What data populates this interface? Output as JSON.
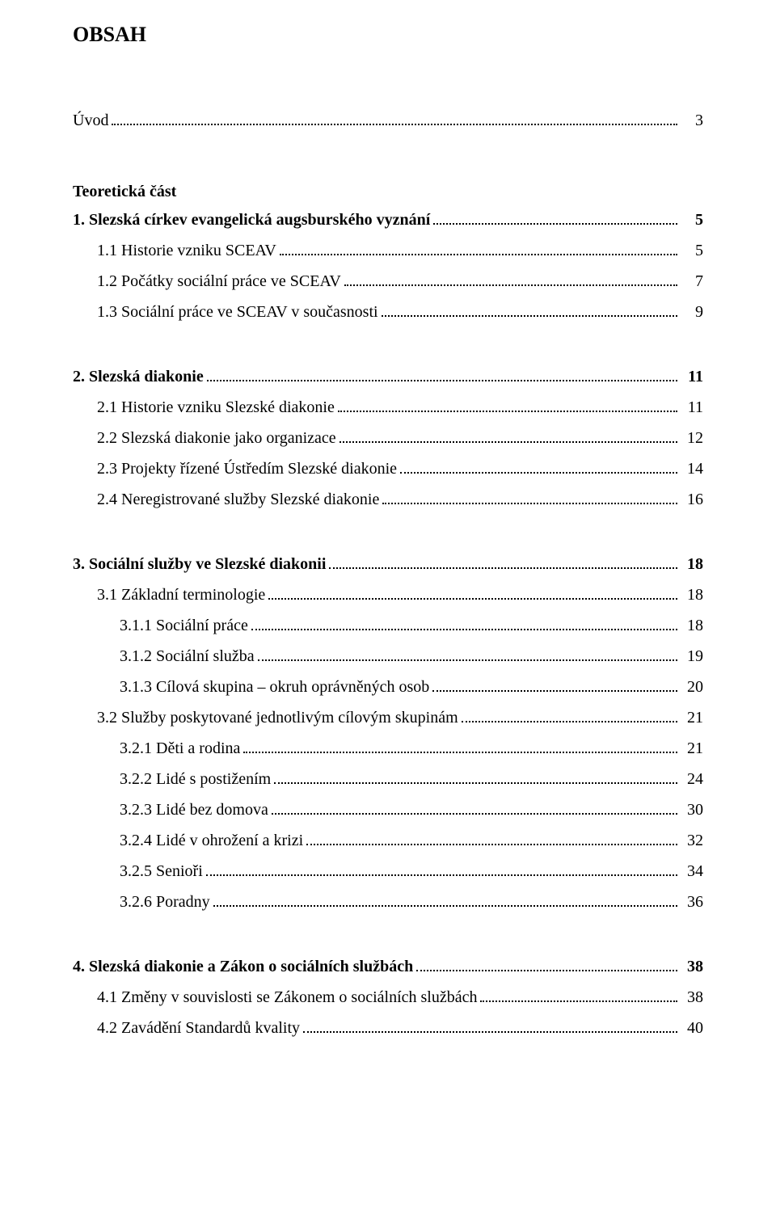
{
  "title": "OBSAH",
  "entries": [
    {
      "label": "Úvod",
      "page": "3",
      "bold": false,
      "indent": "indent-0"
    },
    {
      "gap": "section-gap-big"
    },
    {
      "heading": "Teoretická část"
    },
    {
      "label": "1.    Slezská církev evangelická augsburského vyznání",
      "page": "5",
      "bold": true,
      "indent": "indent-num"
    },
    {
      "label": "1.1 Historie vzniku SCEAV",
      "page": "5",
      "bold": false,
      "indent": "indent-1"
    },
    {
      "label": "1.2 Počátky sociální práce ve SCEAV",
      "page": "7",
      "bold": false,
      "indent": "indent-1"
    },
    {
      "label": "1.3 Sociální práce ve SCEAV v současnosti",
      "page": "9",
      "bold": false,
      "indent": "indent-1"
    },
    {
      "gap": "section-gap"
    },
    {
      "label": "2.    Slezská diakonie",
      "page": "11",
      "bold": true,
      "indent": "indent-num"
    },
    {
      "label": "2.1 Historie vzniku Slezské diakonie",
      "page": "11",
      "bold": false,
      "indent": "indent-1"
    },
    {
      "label": "2.2 Slezská diakonie jako organizace",
      "page": "12",
      "bold": false,
      "indent": "indent-1"
    },
    {
      "label": "2.3 Projekty řízené Ústředím Slezské diakonie",
      "page": "14",
      "bold": false,
      "indent": "indent-1"
    },
    {
      "label": "2.4 Neregistrované služby Slezské diakonie",
      "page": "16",
      "bold": false,
      "indent": "indent-1"
    },
    {
      "gap": "section-gap"
    },
    {
      "label": "3.    Sociální služby ve Slezské diakonii",
      "page": "18",
      "bold": true,
      "indent": "indent-num"
    },
    {
      "label": "3.1 Základní terminologie",
      "page": "18",
      "bold": false,
      "indent": "indent-1"
    },
    {
      "label": "3.1.1  Sociální práce",
      "page": "18",
      "bold": false,
      "indent": "indent-2"
    },
    {
      "label": "3.1.2  Sociální služba",
      "page": "19",
      "bold": false,
      "indent": "indent-2"
    },
    {
      "label": "3.1.3  Cílová skupina – okruh oprávněných osob",
      "page": "20",
      "bold": false,
      "indent": "indent-2"
    },
    {
      "label": "3.2 Služby poskytované jednotlivým cílovým skupinám",
      "page": "21",
      "bold": false,
      "indent": "indent-1"
    },
    {
      "label": "3.2.1  Děti a rodina",
      "page": "21",
      "bold": false,
      "indent": "indent-2"
    },
    {
      "label": "3.2.2  Lidé s postižením",
      "page": "24",
      "bold": false,
      "indent": "indent-2"
    },
    {
      "label": "3.2.3  Lidé bez domova",
      "page": "30",
      "bold": false,
      "indent": "indent-2"
    },
    {
      "label": "3.2.4  Lidé v ohrožení a krizi",
      "page": "32",
      "bold": false,
      "indent": "indent-2"
    },
    {
      "label": "3.2.5  Senioři",
      "page": "34",
      "bold": false,
      "indent": "indent-2"
    },
    {
      "label": "3.2.6  Poradny",
      "page": "36",
      "bold": false,
      "indent": "indent-2"
    },
    {
      "gap": "section-gap"
    },
    {
      "label": "4.    Slezská diakonie a Zákon o sociálních službách",
      "page": "38",
      "bold": true,
      "indent": "indent-num"
    },
    {
      "label": "4.1 Změny v souvislosti se Zákonem o sociálních službách",
      "page": "38",
      "bold": false,
      "indent": "indent-1"
    },
    {
      "label": "4.2 Zavádění Standardů kvality",
      "page": "40",
      "bold": false,
      "indent": "indent-1"
    }
  ]
}
